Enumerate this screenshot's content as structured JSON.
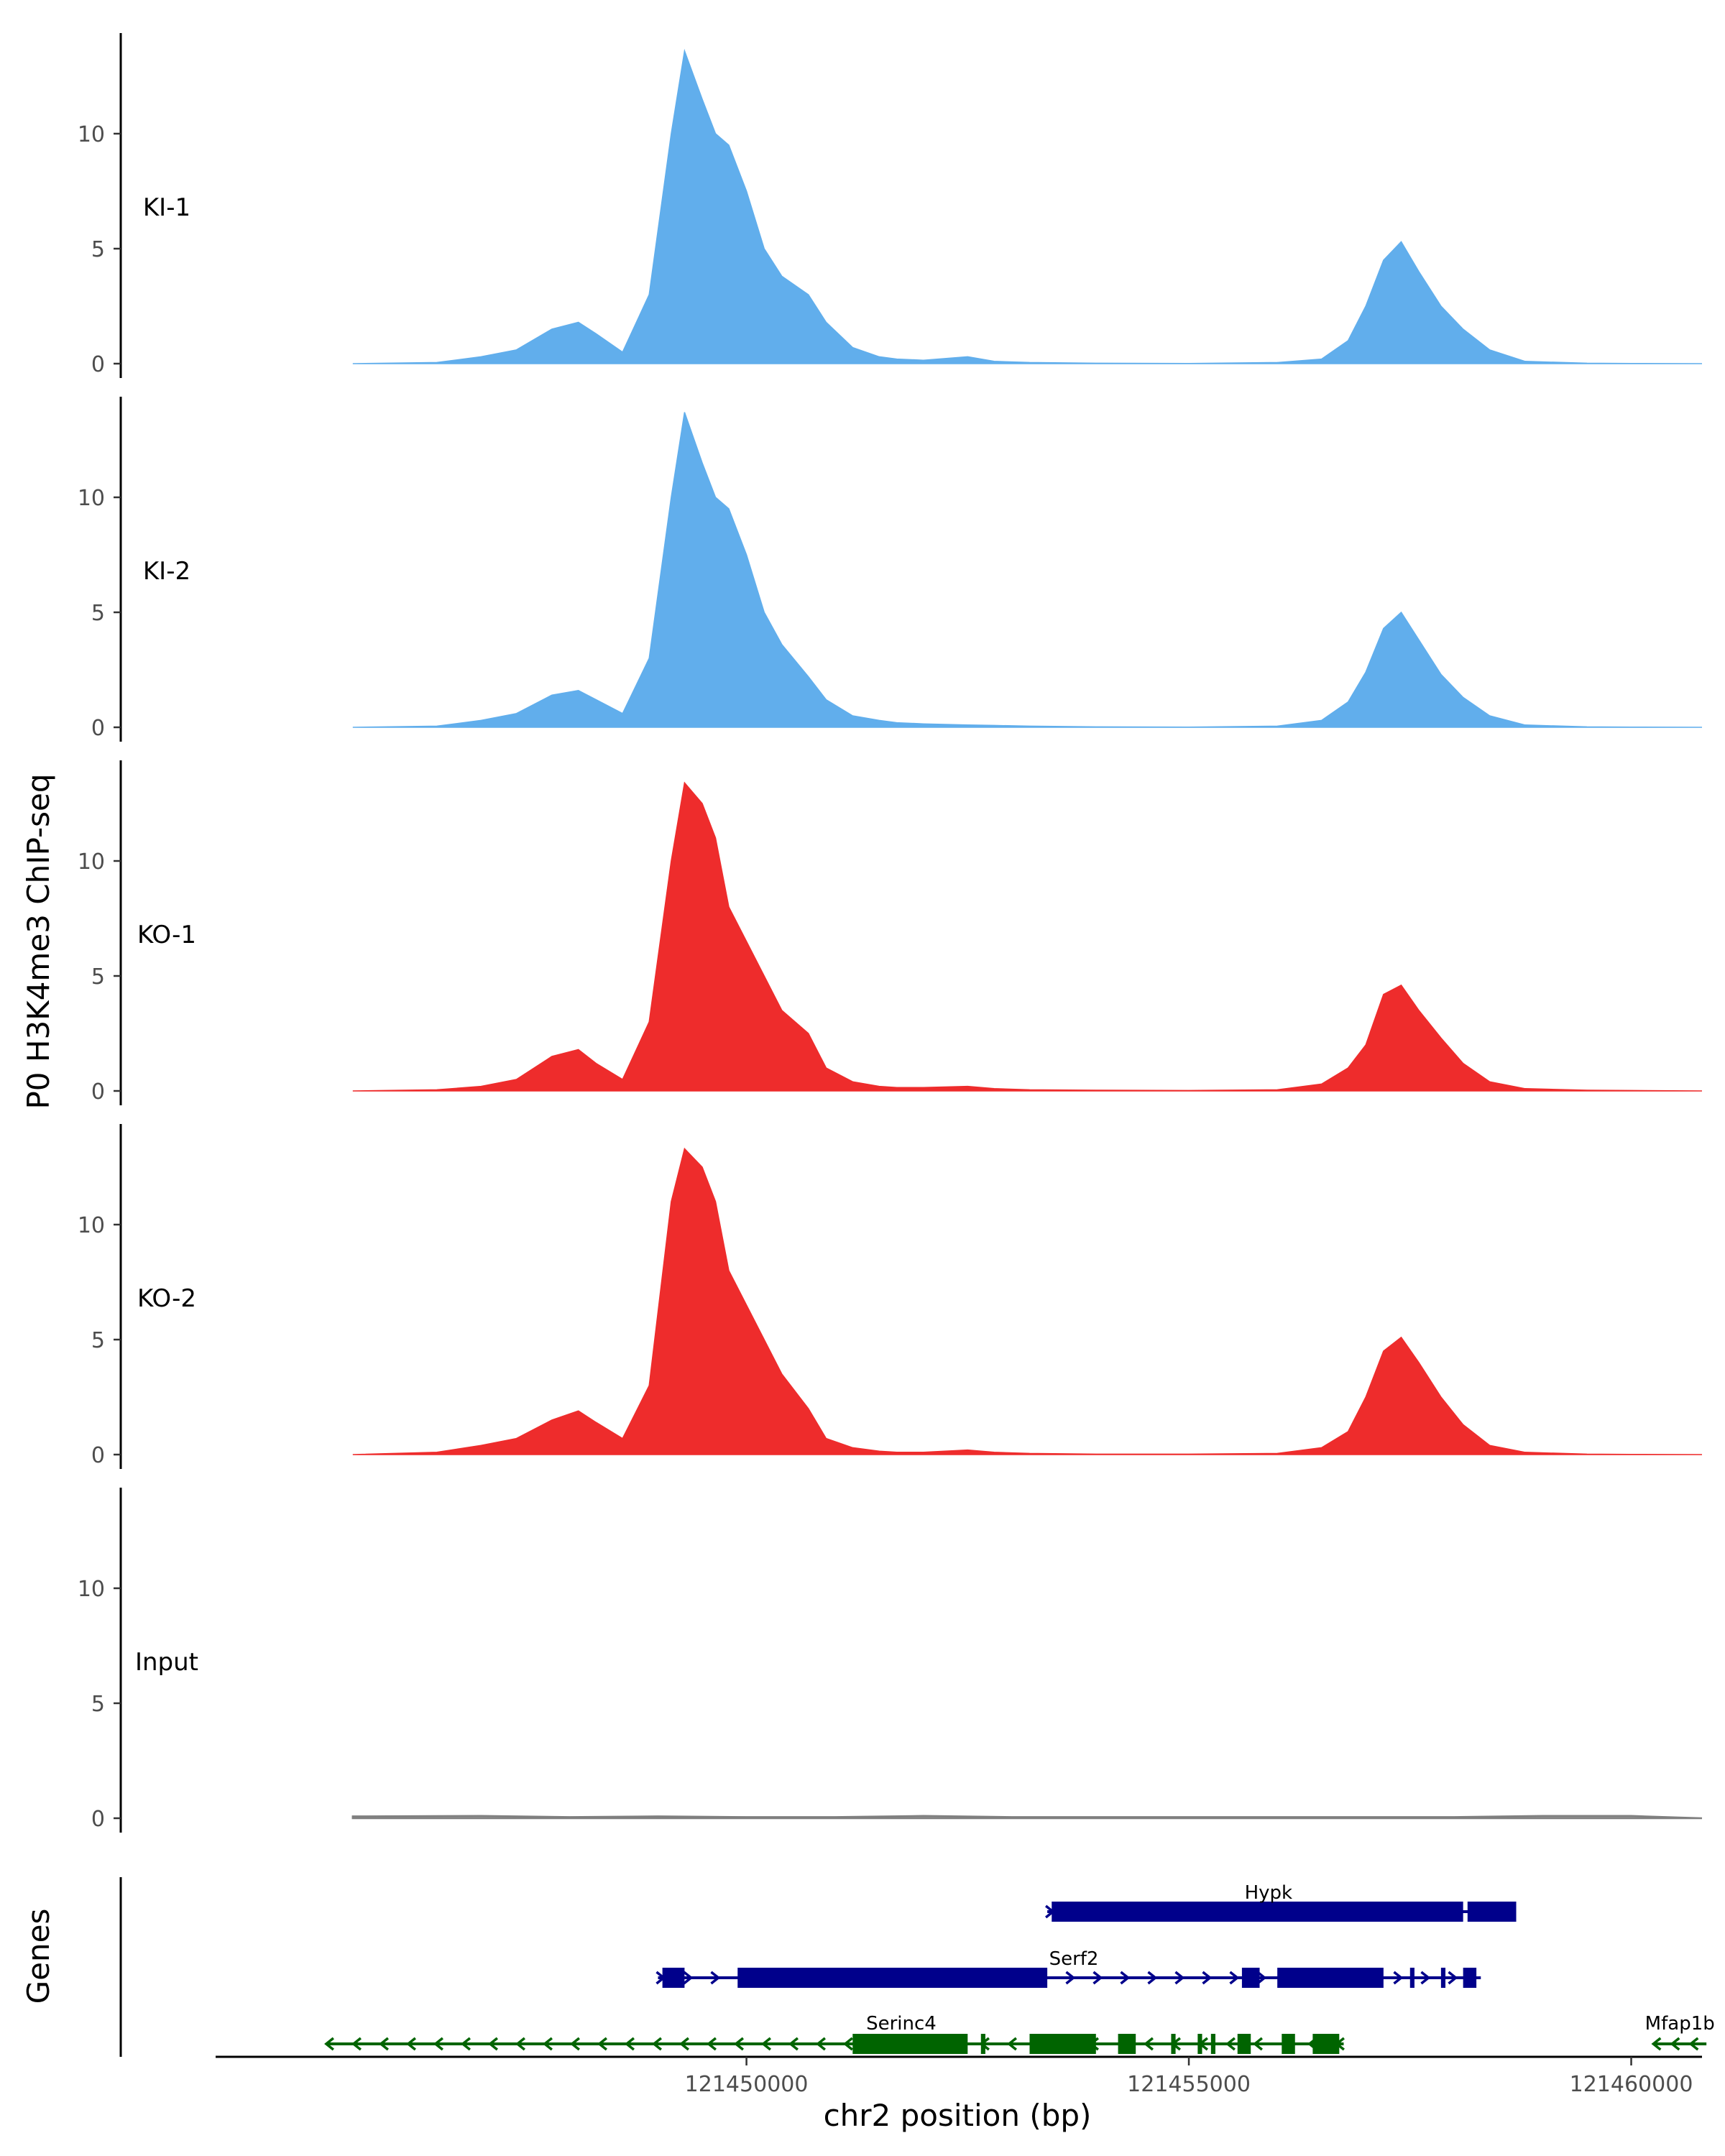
{
  "chart_data": {
    "type": "area",
    "ylabel": "P0 H3K4me3 ChIP-seq",
    "xlabel": "chr2 position (bp)",
    "genes_label": "Genes",
    "chromosome": "chr2",
    "xlim": [
      121444000,
      121460800
    ],
    "ylim": [
      0,
      14
    ],
    "y_ticks": [
      0,
      5,
      10
    ],
    "x_ticks": [
      121450000,
      121455000,
      121460000
    ],
    "grid": false,
    "tracks": [
      {
        "name": "KI-1",
        "color": "#61AEEC",
        "x": [
          121445550,
          121446500,
          121447000,
          121447400,
          121447800,
          121448100,
          121448300,
          121448600,
          121448900,
          121449150,
          121449300,
          121449500,
          121449650,
          121449800,
          121450000,
          121450200,
          121450400,
          121450700,
          121450900,
          121451200,
          121451500,
          121451700,
          121452000,
          121452500,
          121452800,
          121453200,
          121454000,
          121455000,
          121456000,
          121456500,
          121456800,
          121457000,
          121457200,
          121457400,
          121457600,
          121457850,
          121458100,
          121458400,
          121458800,
          121459500,
          121460000,
          121460800
        ],
        "y": [
          0,
          0.05,
          0.3,
          0.6,
          1.5,
          1.8,
          1.3,
          0.5,
          3,
          10,
          13.6,
          11.5,
          10,
          9.5,
          7.5,
          5,
          3.8,
          3,
          1.8,
          0.7,
          0.3,
          0.2,
          0.15,
          0.3,
          0.1,
          0.05,
          0.02,
          0.01,
          0.05,
          0.2,
          1,
          2.5,
          4.5,
          5.3,
          4,
          2.5,
          1.5,
          0.6,
          0.1,
          0.02,
          0.01,
          0
        ]
      },
      {
        "name": "KI-2",
        "color": "#61AEEC",
        "x": [
          121445550,
          121446500,
          121447000,
          121447400,
          121447800,
          121448100,
          121448300,
          121448600,
          121448900,
          121449150,
          121449300,
          121449500,
          121449650,
          121449800,
          121450000,
          121450200,
          121450400,
          121450700,
          121450900,
          121451200,
          121451500,
          121451700,
          121452000,
          121452500,
          121452800,
          121453200,
          121454000,
          121455000,
          121456000,
          121456500,
          121456800,
          121457000,
          121457200,
          121457400,
          121457600,
          121457850,
          121458100,
          121458400,
          121458800,
          121459500,
          121460000,
          121460800
        ],
        "y": [
          0,
          0.05,
          0.3,
          0.6,
          1.4,
          1.6,
          1.2,
          0.6,
          3,
          10,
          13.7,
          11.5,
          10,
          9.5,
          7.5,
          5,
          3.6,
          2.2,
          1.2,
          0.5,
          0.3,
          0.2,
          0.15,
          0.1,
          0.08,
          0.05,
          0.02,
          0.01,
          0.05,
          0.3,
          1.1,
          2.4,
          4.3,
          5,
          3.8,
          2.3,
          1.3,
          0.5,
          0.1,
          0.02,
          0.01,
          0
        ]
      },
      {
        "name": "KO-1",
        "color": "#EE2C2C",
        "x": [
          121445550,
          121446500,
          121447000,
          121447400,
          121447800,
          121448100,
          121448300,
          121448600,
          121448900,
          121449150,
          121449300,
          121449500,
          121449650,
          121449800,
          121450000,
          121450200,
          121450400,
          121450700,
          121450900,
          121451200,
          121451500,
          121451700,
          121452000,
          121452500,
          121452800,
          121453200,
          121454000,
          121455000,
          121456000,
          121456500,
          121456800,
          121457000,
          121457200,
          121457400,
          121457600,
          121457850,
          121458100,
          121458400,
          121458800,
          121459500,
          121460000,
          121460800
        ],
        "y": [
          0,
          0.05,
          0.2,
          0.5,
          1.5,
          1.8,
          1.2,
          0.5,
          3,
          10,
          13.4,
          12.5,
          11,
          8,
          6.5,
          5,
          3.5,
          2.5,
          1,
          0.4,
          0.2,
          0.15,
          0.15,
          0.2,
          0.1,
          0.05,
          0.03,
          0.02,
          0.05,
          0.3,
          1,
          2,
          4.2,
          4.6,
          3.5,
          2.3,
          1.2,
          0.4,
          0.1,
          0.03,
          0.02,
          0
        ]
      },
      {
        "name": "KO-2",
        "color": "#EE2C2C",
        "x": [
          121445550,
          121446500,
          121447000,
          121447400,
          121447800,
          121448100,
          121448300,
          121448600,
          121448900,
          121449150,
          121449300,
          121449500,
          121449650,
          121449800,
          121450000,
          121450200,
          121450400,
          121450700,
          121450900,
          121451200,
          121451500,
          121451700,
          121452000,
          121452500,
          121452800,
          121453200,
          121454000,
          121455000,
          121456000,
          121456500,
          121456800,
          121457000,
          121457200,
          121457400,
          121457600,
          121457850,
          121458100,
          121458400,
          121458800,
          121459500,
          121460000,
          121460800
        ],
        "y": [
          0,
          0.1,
          0.4,
          0.7,
          1.5,
          1.9,
          1.4,
          0.7,
          3,
          11,
          13.3,
          12.5,
          11,
          8,
          6.5,
          5,
          3.5,
          2,
          0.7,
          0.3,
          0.15,
          0.1,
          0.1,
          0.2,
          0.1,
          0.05,
          0.02,
          0.02,
          0.05,
          0.3,
          1,
          2.5,
          4.5,
          5.1,
          4,
          2.5,
          1.3,
          0.4,
          0.1,
          0.02,
          0.01,
          0
        ]
      },
      {
        "name": "Input",
        "color": "#7F7F7F",
        "x": [
          121445550,
          121447000,
          121448000,
          121449000,
          121450000,
          121451000,
          121452000,
          121453000,
          121454000,
          121455000,
          121456000,
          121457000,
          121458000,
          121459000,
          121460000,
          121460800
        ],
        "y": [
          0.08,
          0.1,
          0.05,
          0.08,
          0.05,
          0.05,
          0.1,
          0.05,
          0.05,
          0.05,
          0.05,
          0.05,
          0.05,
          0.1,
          0.1,
          0
        ]
      }
    ],
    "genes": [
      {
        "name": "Hypk",
        "color": "#00008B",
        "strand": "+",
        "start": 121453400,
        "end": 121458700,
        "exons": [
          [
            121453450,
            121458100
          ],
          [
            121458150,
            121458700
          ]
        ]
      },
      {
        "name": "Serf2",
        "color": "#00008B",
        "strand": "+",
        "start": 121449000,
        "end": 121458300,
        "exons": [
          [
            121449050,
            121449300
          ],
          [
            121449900,
            121453400
          ],
          [
            121455600,
            121455800
          ],
          [
            121456000,
            121457200
          ],
          [
            121457500,
            121457550
          ],
          [
            121457850,
            121457900
          ],
          [
            121458100,
            121458250
          ]
        ]
      },
      {
        "name": "Serinc4",
        "color": "#006400",
        "strand": "-",
        "start": 121445250,
        "end": 121456750,
        "exons": [
          [
            121451200,
            121452500
          ],
          [
            121452650,
            121452700
          ],
          [
            121453200,
            121453950
          ],
          [
            121454200,
            121454400
          ],
          [
            121454800,
            121454850
          ],
          [
            121455100,
            121455150
          ],
          [
            121455250,
            121455300
          ],
          [
            121455550,
            121455700
          ],
          [
            121456050,
            121456200
          ],
          [
            121456400,
            121456700
          ]
        ]
      },
      {
        "name": "Mfap1b",
        "color": "#006400",
        "strand": "-",
        "start": 121460250,
        "end": 121460850,
        "exons": []
      }
    ]
  }
}
